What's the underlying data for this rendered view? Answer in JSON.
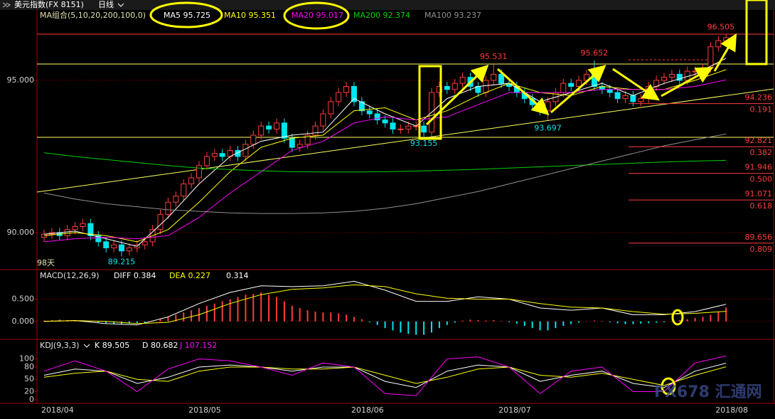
{
  "chart_data": [
    {
      "type": "candlestick",
      "title": "美元指数(FX 8151)",
      "period": "日线",
      "indicator": "MA组合(5,10,20,200,100,0)",
      "annotation": "98天",
      "up_color": "#ff3c3c",
      "down_color": "#00e5ee",
      "categories": [
        "2018/04",
        null,
        null,
        null,
        null,
        null,
        null,
        null,
        null,
        null,
        null,
        null,
        null,
        null,
        null,
        null,
        null,
        null,
        null,
        "2018/05",
        null,
        null,
        null,
        null,
        null,
        null,
        null,
        null,
        null,
        null,
        null,
        null,
        null,
        null,
        null,
        null,
        null,
        null,
        null,
        null,
        "2018/06",
        null,
        null,
        null,
        null,
        null,
        null,
        null,
        null,
        null,
        null,
        null,
        null,
        null,
        null,
        null,
        null,
        null,
        null,
        "2018/07",
        null,
        null,
        null,
        null,
        null,
        null,
        null,
        null,
        null,
        null,
        null,
        null,
        null,
        null,
        null,
        null,
        null,
        null,
        null,
        null,
        null,
        null,
        null,
        null,
        null,
        null,
        null,
        "2018/08",
        null
      ],
      "open": [
        89.85,
        89.95,
        90.0,
        89.9,
        90.1,
        90.2,
        90.3,
        89.9,
        89.7,
        89.5,
        89.6,
        89.4,
        89.5,
        89.6,
        89.7,
        90.1,
        90.6,
        91.0,
        91.2,
        91.6,
        91.8,
        92.2,
        92.5,
        92.6,
        92.5,
        92.7,
        92.5,
        92.9,
        93.2,
        93.5,
        93.4,
        93.6,
        93.1,
        92.8,
        92.9,
        93.2,
        93.5,
        93.9,
        94.3,
        94.6,
        94.8,
        94.3,
        94.0,
        93.9,
        93.7,
        93.6,
        93.4,
        93.4,
        93.5,
        93.5,
        93.3,
        94.6,
        94.8,
        94.7,
        94.9,
        95.1,
        94.8,
        94.6,
        95.0,
        95.2,
        94.9,
        94.8,
        94.6,
        94.4,
        94.2,
        94.0,
        94.3,
        94.6,
        94.9,
        94.8,
        95.0,
        95.2,
        94.8,
        94.7,
        94.6,
        94.4,
        94.5,
        94.3,
        94.4,
        94.8,
        95.0,
        95.1,
        95.2,
        95.0,
        95.3,
        95.3,
        95.4,
        96.1,
        96.3
      ],
      "high": [
        90.1,
        90.15,
        90.15,
        90.25,
        90.35,
        90.45,
        90.45,
        90.05,
        89.85,
        89.75,
        89.75,
        89.65,
        89.75,
        89.85,
        90.25,
        90.75,
        91.15,
        91.35,
        91.75,
        91.95,
        92.35,
        92.65,
        92.75,
        92.75,
        92.85,
        92.85,
        93.05,
        93.35,
        93.65,
        93.65,
        93.75,
        93.75,
        93.25,
        93.05,
        93.35,
        93.65,
        94.05,
        94.45,
        94.75,
        94.95,
        94.95,
        94.45,
        94.15,
        94.05,
        93.85,
        93.75,
        93.55,
        93.65,
        93.65,
        93.65,
        94.75,
        94.95,
        94.95,
        95.05,
        95.25,
        95.25,
        94.95,
        95.15,
        95.531,
        95.35,
        95.05,
        94.95,
        94.75,
        94.55,
        94.35,
        94.45,
        94.75,
        95.05,
        95.05,
        95.15,
        95.35,
        95.652,
        94.95,
        94.85,
        94.75,
        94.65,
        94.65,
        94.55,
        94.95,
        95.15,
        95.25,
        95.35,
        95.35,
        95.45,
        95.45,
        95.55,
        96.25,
        96.45,
        96.505
      ],
      "low": [
        89.7,
        89.8,
        89.75,
        89.75,
        89.95,
        90.05,
        89.75,
        89.55,
        89.35,
        89.35,
        89.215,
        89.25,
        89.35,
        89.45,
        89.55,
        89.95,
        90.45,
        90.85,
        91.05,
        91.45,
        91.65,
        92.05,
        92.35,
        92.35,
        92.35,
        92.35,
        92.35,
        92.75,
        93.05,
        93.25,
        93.25,
        92.95,
        92.65,
        92.65,
        92.75,
        93.05,
        93.35,
        93.75,
        94.15,
        94.45,
        94.15,
        93.85,
        93.75,
        93.55,
        93.45,
        93.25,
        93.25,
        93.25,
        93.35,
        93.155,
        93.15,
        94.45,
        94.55,
        94.55,
        94.75,
        94.65,
        94.45,
        94.45,
        94.85,
        94.75,
        94.65,
        94.45,
        94.25,
        94.05,
        93.85,
        93.697,
        94.15,
        94.45,
        94.65,
        94.65,
        94.85,
        94.65,
        94.55,
        94.45,
        94.25,
        94.25,
        94.15,
        94.15,
        94.25,
        94.65,
        94.85,
        94.95,
        94.85,
        94.85,
        95.15,
        95.15,
        95.25,
        95.95,
        96.15
      ],
      "close": [
        89.95,
        90.0,
        89.9,
        90.1,
        90.2,
        90.3,
        89.9,
        89.7,
        89.5,
        89.6,
        89.4,
        89.5,
        89.6,
        89.7,
        90.1,
        90.6,
        91.0,
        91.2,
        91.6,
        91.8,
        92.2,
        92.5,
        92.6,
        92.5,
        92.7,
        92.5,
        92.9,
        93.2,
        93.5,
        93.4,
        93.6,
        93.1,
        92.8,
        92.9,
        93.2,
        93.5,
        93.9,
        94.3,
        94.6,
        94.8,
        94.3,
        94.0,
        93.9,
        93.7,
        93.6,
        93.4,
        93.4,
        93.5,
        93.5,
        93.3,
        94.6,
        94.8,
        94.7,
        94.9,
        95.1,
        94.8,
        94.6,
        95.0,
        95.2,
        94.9,
        94.8,
        94.6,
        94.4,
        94.2,
        94.0,
        94.3,
        94.6,
        94.9,
        94.8,
        95.0,
        95.2,
        94.8,
        94.7,
        94.6,
        94.4,
        94.5,
        94.3,
        94.4,
        94.8,
        95.0,
        95.1,
        95.2,
        95.0,
        95.3,
        95.3,
        95.4,
        96.1,
        96.3,
        96.4
      ],
      "x": [
        0,
        4,
        8,
        12,
        16,
        20,
        24,
        28,
        32,
        36,
        40,
        44,
        48,
        52,
        56,
        60,
        64,
        68,
        72,
        76,
        80,
        84,
        88
      ],
      "series": [
        {
          "name": "MA5",
          "color": "#ffffff",
          "values": [
            89.95,
            90.05,
            89.8,
            89.55,
            90.5,
            91.6,
            92.5,
            93.0,
            93.2,
            93.3,
            94.4,
            93.9,
            93.5,
            94.4,
            94.8,
            94.9,
            94.3,
            94.6,
            94.9,
            94.5,
            94.9,
            95.2,
            95.725
          ]
        },
        {
          "name": "MA10",
          "color": "#ffff00",
          "values": [
            89.9,
            90.0,
            89.9,
            89.7,
            90.1,
            91.0,
            92.0,
            92.8,
            93.1,
            93.2,
            94.0,
            94.1,
            93.7,
            94.0,
            94.5,
            94.9,
            94.6,
            94.5,
            94.8,
            94.7,
            94.7,
            95.0,
            95.351
          ]
        },
        {
          "name": "MA20",
          "color": "#ff00ff",
          "values": [
            89.7,
            89.8,
            89.85,
            89.8,
            89.9,
            90.5,
            91.3,
            92.0,
            92.7,
            93.0,
            93.6,
            93.8,
            93.7,
            93.8,
            94.2,
            94.6,
            94.6,
            94.6,
            94.7,
            94.7,
            94.7,
            94.8,
            95.017
          ]
        },
        {
          "name": "MA200",
          "color": "#00d000",
          "values": [
            92.62,
            92.5,
            92.4,
            92.3,
            92.2,
            92.12,
            92.07,
            92.03,
            92.0,
            91.99,
            91.99,
            92.0,
            92.02,
            92.05,
            92.08,
            92.12,
            92.16,
            92.2,
            92.24,
            92.28,
            92.32,
            92.35,
            92.374
          ]
        },
        {
          "name": "MA100",
          "color": "#909090",
          "values": [
            91.3,
            91.1,
            90.95,
            90.85,
            90.75,
            90.7,
            90.65,
            90.63,
            90.63,
            90.65,
            90.7,
            90.8,
            90.95,
            91.15,
            91.35,
            91.6,
            91.85,
            92.1,
            92.35,
            92.6,
            92.85,
            93.05,
            93.237
          ]
        }
      ],
      "ylim": [
        88.81,
        97.24
      ],
      "yticks": [
        {
          "value": 90,
          "label": "90.000"
        },
        {
          "value": 95,
          "label": "95.000"
        }
      ],
      "grid": true,
      "fib_levels": [
        {
          "price": 94.236,
          "ratio": 0.191
        },
        {
          "price": 92.821,
          "ratio": 0.382
        },
        {
          "price": 91.946,
          "ratio": {
            "value": 0.5,
            "label": "0.500"
          }
        },
        {
          "price": 91.071,
          "ratio": 0.618
        },
        {
          "price": 89.656,
          "ratio": 0.809
        }
      ]
    },
    {
      "type": "macd",
      "title": "MACD(12,26,9)",
      "x": [
        0,
        4,
        8,
        12,
        16,
        20,
        24,
        28,
        32,
        36,
        40,
        44,
        48,
        52,
        56,
        60,
        64,
        68,
        72,
        76,
        80,
        84,
        88
      ],
      "series": [
        {
          "name": "DIFF",
          "color": "#ffffff",
          "values": [
            0.0,
            0.02,
            -0.05,
            -0.08,
            0.1,
            0.4,
            0.65,
            0.8,
            0.78,
            0.8,
            0.9,
            0.7,
            0.45,
            0.45,
            0.55,
            0.5,
            0.3,
            0.25,
            0.3,
            0.15,
            0.15,
            0.22,
            0.384
          ]
        },
        {
          "name": "DEA",
          "color": "#ffff00",
          "values": [
            0.0,
            0.02,
            0.0,
            -0.05,
            -0.02,
            0.15,
            0.4,
            0.6,
            0.72,
            0.75,
            0.82,
            0.78,
            0.62,
            0.52,
            0.5,
            0.5,
            0.4,
            0.32,
            0.3,
            0.22,
            0.16,
            0.18,
            0.227
          ]
        }
      ],
      "histogram": [
        0.02,
        0.03,
        0.04,
        0.03,
        0.02,
        0.02,
        0.0,
        -0.02,
        -0.04,
        -0.05,
        -0.06,
        -0.05,
        -0.04,
        -0.03,
        0.0,
        0.05,
        0.1,
        0.15,
        0.2,
        0.25,
        0.3,
        0.35,
        0.4,
        0.45,
        0.5,
        0.55,
        0.6,
        0.62,
        0.65,
        0.6,
        0.55,
        0.45,
        0.35,
        0.3,
        0.25,
        0.22,
        0.2,
        0.2,
        0.18,
        0.15,
        0.1,
        0.05,
        -0.02,
        -0.08,
        -0.15,
        -0.2,
        -0.25,
        -0.28,
        -0.3,
        -0.3,
        -0.25,
        -0.15,
        -0.08,
        -0.03,
        0.02,
        0.04,
        0.03,
        0.02,
        0.03,
        0.01,
        -0.02,
        -0.05,
        -0.1,
        -0.15,
        -0.2,
        -0.2,
        -0.15,
        -0.1,
        -0.06,
        -0.03,
        0.0,
        0.02,
        0.01,
        -0.02,
        -0.04,
        -0.06,
        -0.06,
        -0.05,
        -0.04,
        -0.03,
        -0.02,
        0.0,
        0.03,
        0.05,
        0.08,
        0.1,
        0.15,
        0.22,
        0.314
      ],
      "ylim": [
        -0.37,
        1.13
      ],
      "yticks": [
        {
          "value": 0,
          "label": "0.000"
        },
        {
          "value": 0.5,
          "label": "0.500"
        }
      ],
      "grid": true
    },
    {
      "type": "line",
      "title": "KDJ(9,3,3)",
      "x": [
        0,
        4,
        8,
        12,
        16,
        20,
        24,
        28,
        32,
        36,
        40,
        44,
        48,
        52,
        56,
        60,
        64,
        68,
        72,
        76,
        80,
        84,
        88
      ],
      "series": [
        {
          "name": "K",
          "color": "#ffffff",
          "values": [
            60,
            75,
            70,
            40,
            55,
            80,
            85,
            80,
            70,
            80,
            80,
            45,
            30,
            70,
            85,
            80,
            45,
            60,
            70,
            40,
            30,
            70,
            89.505
          ]
        },
        {
          "name": "D",
          "color": "#ffff00",
          "values": [
            55,
            65,
            70,
            50,
            45,
            70,
            80,
            80,
            75,
            75,
            80,
            60,
            40,
            55,
            75,
            80,
            60,
            55,
            65,
            50,
            35,
            60,
            80.682
          ]
        },
        {
          "name": "J",
          "color": "#ff00ff",
          "values": [
            70,
            95,
            70,
            20,
            75,
            100,
            95,
            80,
            60,
            90,
            80,
            15,
            10,
            100,
            105,
            80,
            15,
            70,
            80,
            20,
            20,
            90,
            107.152
          ]
        }
      ],
      "ylim": [
        -7,
        146
      ],
      "yticks": [
        0,
        20,
        50,
        80,
        100
      ],
      "grid": false
    }
  ]
}
